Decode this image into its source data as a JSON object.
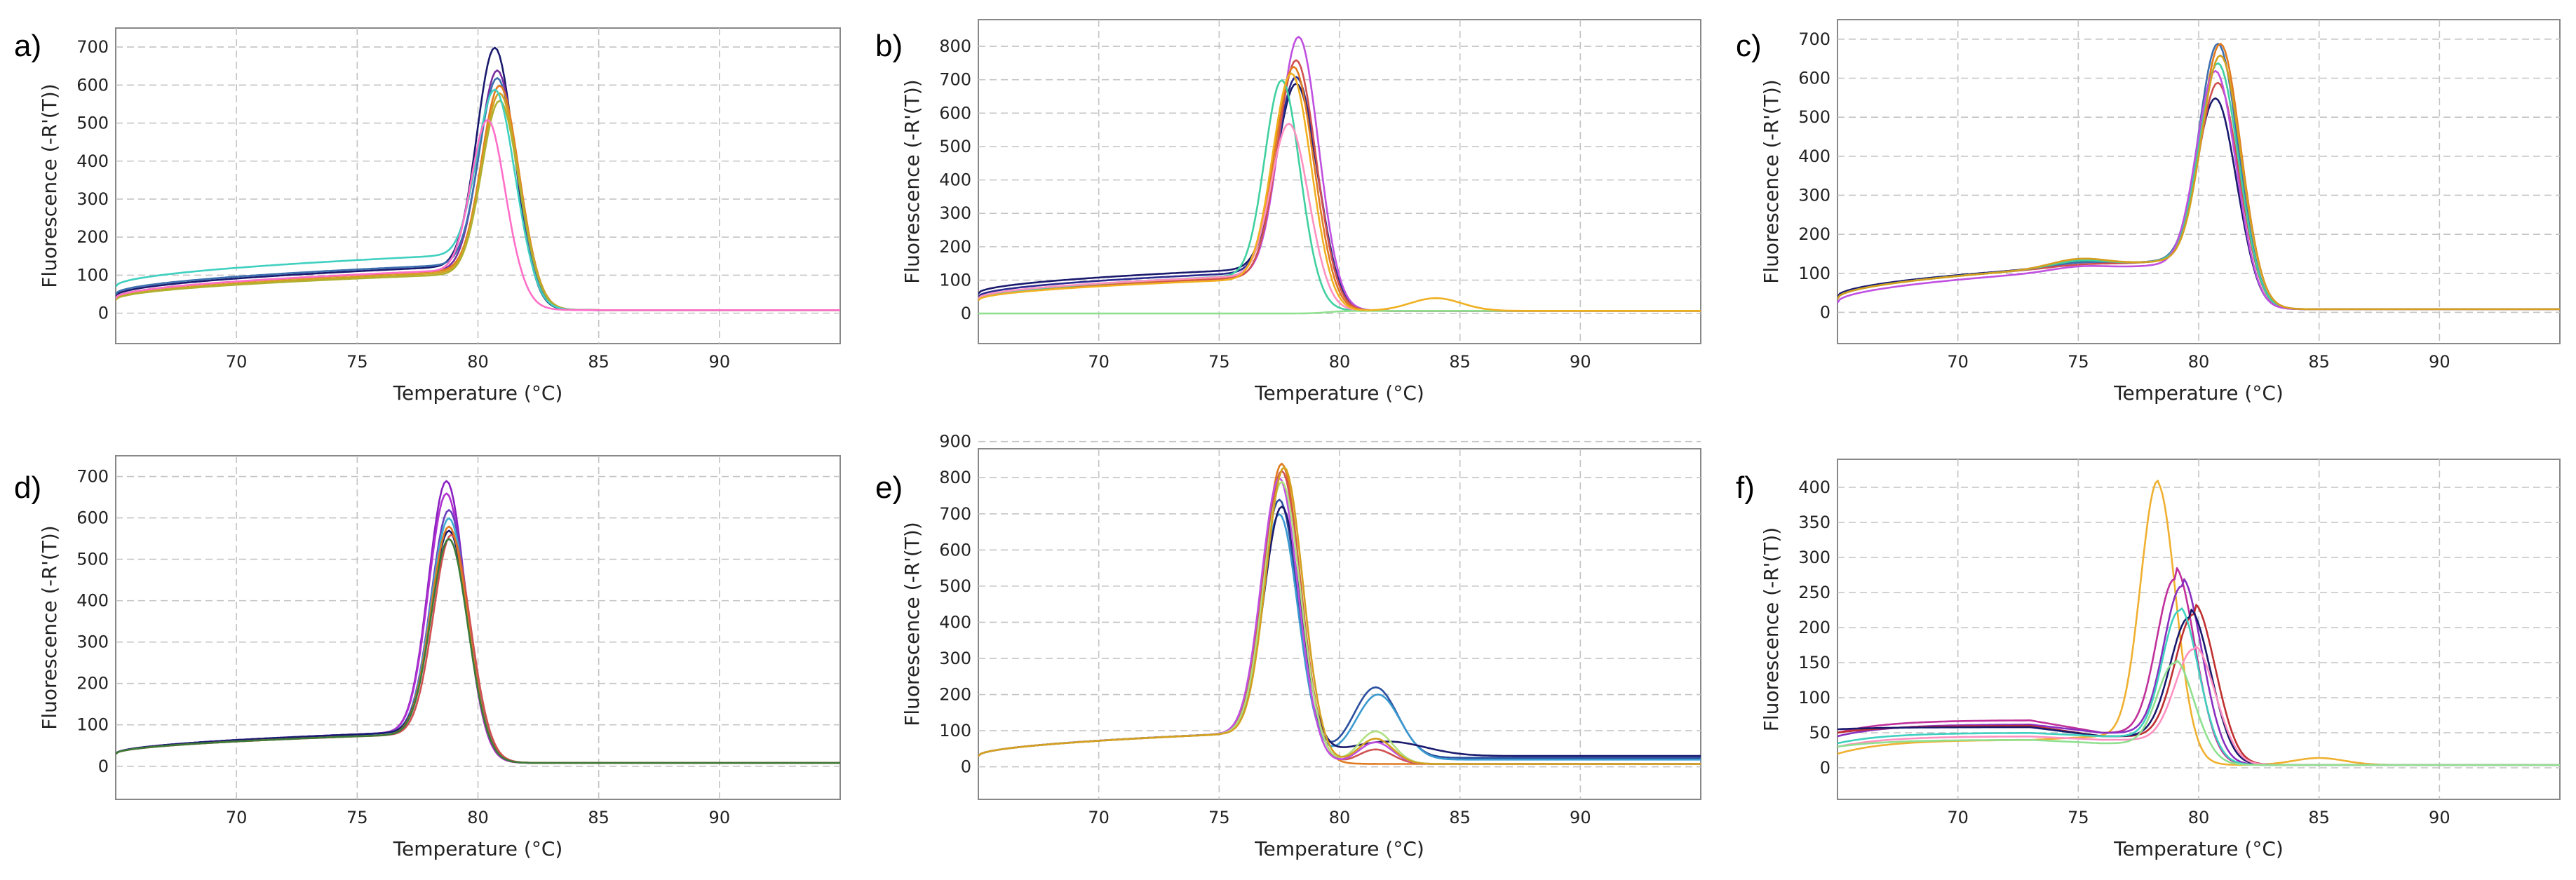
{
  "chart_data": [
    {
      "panel": "a)",
      "type": "line",
      "xlabel": "Temperature (°C)",
      "ylabel": "Fluorescence (-R'(T))",
      "xlim": [
        65,
        95
      ],
      "ylim": [
        -80,
        750
      ],
      "xticks": [
        70,
        75,
        80,
        85,
        90
      ],
      "yticks": [
        0,
        100,
        200,
        300,
        400,
        500,
        600,
        700
      ],
      "grid": true,
      "series": [
        {
          "color": "#1a1a6e",
          "peak_x": 80.7,
          "peak_y": 700,
          "width": 1.05,
          "base_left": 45,
          "plateau": 120
        },
        {
          "color": "#7a2fa0",
          "peak_x": 80.8,
          "peak_y": 640,
          "width": 1.05,
          "base_left": 40,
          "plateau": 110
        },
        {
          "color": "#3d6fb0",
          "peak_x": 80.8,
          "peak_y": 620,
          "width": 1.05,
          "base_left": 50,
          "plateau": 125
        },
        {
          "color": "#e07b20",
          "peak_x": 80.9,
          "peak_y": 600,
          "width": 1.05,
          "base_left": 40,
          "plateau": 110
        },
        {
          "color": "#d4a020",
          "peak_x": 80.9,
          "peak_y": 580,
          "width": 1.05,
          "base_left": 35,
          "plateau": 105
        },
        {
          "color": "#b0b030",
          "peak_x": 80.9,
          "peak_y": 560,
          "width": 1.05,
          "base_left": 35,
          "plateau": 100
        },
        {
          "color": "#3fd0c0",
          "peak_x": 80.7,
          "peak_y": 590,
          "width": 1.05,
          "base_left": 70,
          "plateau": 150
        },
        {
          "color": "#ff6fc8",
          "peak_x": 80.4,
          "peak_y": 510,
          "width": 0.95,
          "base_left": 40,
          "plateau": 110
        }
      ]
    },
    {
      "panel": "b)",
      "type": "line",
      "xlabel": "Temperature (°C)",
      "ylabel": "Fluorescence (-R'(T))",
      "xlim": [
        65,
        95
      ],
      "ylim": [
        -90,
        880
      ],
      "xticks": [
        70,
        75,
        80,
        85,
        90
      ],
      "yticks": [
        0,
        100,
        200,
        300,
        400,
        500,
        600,
        700,
        800
      ],
      "grid": true,
      "series": [
        {
          "color": "#1a1a6e",
          "peak_x": 78.2,
          "peak_y": 690,
          "width": 1.15,
          "base_left": 60,
          "plateau": 130
        },
        {
          "color": "#2b2b8f",
          "peak_x": 78.2,
          "peak_y": 710,
          "width": 1.15,
          "base_left": 50,
          "plateau": 120
        },
        {
          "color": "#c050e0",
          "peak_x": 78.3,
          "peak_y": 830,
          "width": 1.1,
          "base_left": 40,
          "plateau": 110
        },
        {
          "color": "#d05050",
          "peak_x": 78.2,
          "peak_y": 760,
          "width": 1.1,
          "base_left": 40,
          "plateau": 105
        },
        {
          "color": "#e07b20",
          "peak_x": 78.1,
          "peak_y": 740,
          "width": 1.1,
          "base_left": 40,
          "plateau": 110
        },
        {
          "color": "#40d0a0",
          "peak_x": 77.6,
          "peak_y": 700,
          "width": 1.0,
          "base_left": 40,
          "plateau": 110
        },
        {
          "color": "#ff90c0",
          "peak_x": 77.9,
          "peak_y": 570,
          "width": 1.05,
          "base_left": 45,
          "plateau": 110
        },
        {
          "color": "#90e090",
          "peak_x": 78.0,
          "peak_y": 0,
          "width": 1.0,
          "base_left": 0,
          "plateau": 0
        },
        {
          "color": "#f0b020",
          "peak_x": 78.0,
          "peak_y": 720,
          "width": 1.1,
          "base_left": 40,
          "plateau": 100,
          "bump_x": 84,
          "bump_y": 38,
          "bump_w": 1.5
        }
      ]
    },
    {
      "panel": "c)",
      "type": "line",
      "xlabel": "Temperature (°C)",
      "ylabel": "Fluorescence (-R'(T))",
      "xlim": [
        65,
        95
      ],
      "ylim": [
        -80,
        750
      ],
      "xticks": [
        70,
        75,
        80,
        85,
        90
      ],
      "yticks": [
        0,
        100,
        200,
        300,
        400,
        500,
        600,
        700
      ],
      "grid": true,
      "series": [
        {
          "color": "#1a1a6e",
          "peak_x": 80.7,
          "peak_y": 550,
          "width": 1.1,
          "base_left": 40,
          "plateau": 130,
          "shoulder": 140
        },
        {
          "color": "#3d6fb0",
          "peak_x": 80.8,
          "peak_y": 690,
          "width": 1.1,
          "base_left": 35,
          "plateau": 130,
          "shoulder": 140
        },
        {
          "color": "#e07b20",
          "peak_x": 80.9,
          "peak_y": 690,
          "width": 1.1,
          "base_left": 35,
          "plateau": 130,
          "shoulder": 150
        },
        {
          "color": "#d05050",
          "peak_x": 80.8,
          "peak_y": 590,
          "width": 1.1,
          "base_left": 35,
          "plateau": 130,
          "shoulder": 135
        },
        {
          "color": "#40d0a0",
          "peak_x": 80.8,
          "peak_y": 640,
          "width": 1.1,
          "base_left": 35,
          "plateau": 130,
          "shoulder": 145
        },
        {
          "color": "#c050e0",
          "peak_x": 80.7,
          "peak_y": 620,
          "width": 1.1,
          "base_left": 25,
          "plateau": 120,
          "shoulder": 130
        },
        {
          "color": "#d4a020",
          "peak_x": 80.9,
          "peak_y": 660,
          "width": 1.1,
          "base_left": 35,
          "plateau": 130,
          "shoulder": 150
        }
      ]
    },
    {
      "panel": "d)",
      "type": "line",
      "xlabel": "Temperature (°C)",
      "ylabel": "Fluorescence (-R'(T))",
      "xlim": [
        65,
        95
      ],
      "ylim": [
        -80,
        750
      ],
      "xticks": [
        70,
        75,
        80,
        85,
        90
      ],
      "yticks": [
        0,
        100,
        200,
        300,
        400,
        500,
        600,
        700
      ],
      "grid": true,
      "series": [
        {
          "color": "#8a20c0",
          "peak_x": 78.7,
          "peak_y": 690,
          "width": 1.05,
          "base_left": 30,
          "plateau": 80
        },
        {
          "color": "#b030d0",
          "peak_x": 78.7,
          "peak_y": 660,
          "width": 1.05,
          "base_left": 30,
          "plateau": 80
        },
        {
          "color": "#6a40c0",
          "peak_x": 78.8,
          "peak_y": 620,
          "width": 1.05,
          "base_left": 30,
          "plateau": 80
        },
        {
          "color": "#3fb0d0",
          "peak_x": 78.8,
          "peak_y": 600,
          "width": 1.05,
          "base_left": 30,
          "plateau": 80
        },
        {
          "color": "#1a1a6e",
          "peak_x": 78.8,
          "peak_y": 570,
          "width": 1.05,
          "base_left": 30,
          "plateau": 80
        },
        {
          "color": "#d05050",
          "peak_x": 78.9,
          "peak_y": 560,
          "width": 1.05,
          "base_left": 30,
          "plateau": 75
        },
        {
          "color": "#e07b20",
          "peak_x": 78.8,
          "peak_y": 580,
          "width": 1.05,
          "base_left": 30,
          "plateau": 75
        },
        {
          "color": "#3a7a3a",
          "peak_x": 78.8,
          "peak_y": 550,
          "width": 1.05,
          "base_left": 30,
          "plateau": 75
        }
      ]
    },
    {
      "panel": "e)",
      "type": "line",
      "xlabel": "Temperature (°C)",
      "ylabel": "Fluorescence (-R'(T))",
      "xlim": [
        65,
        95
      ],
      "ylim": [
        -90,
        880
      ],
      "xticks": [
        70,
        75,
        80,
        85,
        90
      ],
      "yticks": [
        0,
        100,
        200,
        300,
        400,
        500,
        600,
        700,
        800,
        900
      ],
      "grid": true,
      "series": [
        {
          "color": "#2b4f9f",
          "peak_x": 77.5,
          "peak_y": 740,
          "width": 1.05,
          "base_left": 30,
          "plateau": 90,
          "bump_x": 81.5,
          "bump_y": 195,
          "bump_w": 1.3,
          "tail": 25
        },
        {
          "color": "#3a9ad0",
          "peak_x": 77.5,
          "peak_y": 700,
          "width": 1.05,
          "base_left": 30,
          "plateau": 90,
          "bump_x": 81.6,
          "bump_y": 180,
          "bump_w": 1.3,
          "tail": 20
        },
        {
          "color": "#1a1a6e",
          "peak_x": 77.6,
          "peak_y": 720,
          "width": 1.05,
          "base_left": 30,
          "plateau": 90,
          "bump_x": 82.0,
          "bump_y": 40,
          "bump_w": 2.2,
          "tail": 30
        },
        {
          "color": "#e07b20",
          "peak_x": 77.6,
          "peak_y": 840,
          "width": 1.05,
          "base_left": 30,
          "plateau": 90
        },
        {
          "color": "#d05050",
          "peak_x": 77.6,
          "peak_y": 820,
          "width": 1.05,
          "base_left": 30,
          "plateau": 90,
          "bump_x": 81.5,
          "bump_y": 40,
          "bump_w": 1.0
        },
        {
          "color": "#c050e0",
          "peak_x": 77.5,
          "peak_y": 800,
          "width": 1.05,
          "base_left": 30,
          "plateau": 90,
          "bump_x": 81.5,
          "bump_y": 60,
          "bump_w": 1.0
        },
        {
          "color": "#b0e080",
          "peak_x": 77.6,
          "peak_y": 790,
          "width": 1.05,
          "base_left": 30,
          "plateau": 90,
          "bump_x": 81.5,
          "bump_y": 90,
          "bump_w": 1.0
        },
        {
          "color": "#d4a020",
          "peak_x": 77.7,
          "peak_y": 830,
          "width": 1.05,
          "base_left": 30,
          "plateau": 90,
          "bump_x": 81.5,
          "bump_y": 70,
          "bump_w": 1.0
        }
      ]
    },
    {
      "panel": "f)",
      "type": "line",
      "xlabel": "Temperature (°C)",
      "ylabel": "Fluorescence (-R'(T))",
      "xlim": [
        65,
        95
      ],
      "ylim": [
        -45,
        440
      ],
      "xticks": [
        70,
        75,
        80,
        85,
        90
      ],
      "yticks": [
        0,
        50,
        100,
        150,
        200,
        250,
        300,
        350,
        400
      ],
      "grid": true,
      "series": [
        {
          "color": "#f0b030",
          "peak_x": 78.3,
          "peak_y": 410,
          "width": 1.0,
          "base_left": 20,
          "plateau": 45,
          "hump": 40,
          "bump_x": 85,
          "bump_y": 10,
          "bump_w": 1.5
        },
        {
          "color": "#c0309a",
          "peak_x": 79.0,
          "peak_y": 270,
          "width": 1.05,
          "base_left": 50,
          "plateau": 50,
          "hump": 68
        },
        {
          "color": "#8a2fc0",
          "peak_x": 79.3,
          "peak_y": 260,
          "width": 1.05,
          "base_left": 45,
          "plateau": 50,
          "hump": 62
        },
        {
          "color": "#c03030",
          "peak_x": 79.8,
          "peak_y": 220,
          "width": 1.1,
          "base_left": 50,
          "plateau": 45,
          "hump": 60
        },
        {
          "color": "#1a1a6e",
          "peak_x": 79.6,
          "peak_y": 215,
          "width": 1.1,
          "base_left": 55,
          "plateau": 45,
          "hump": 58
        },
        {
          "color": "#3fd0c0",
          "peak_x": 79.2,
          "peak_y": 225,
          "width": 1.0,
          "base_left": 35,
          "plateau": 45,
          "hump": 50
        },
        {
          "color": "#ff90c0",
          "peak_x": 79.8,
          "peak_y": 170,
          "width": 1.1,
          "base_left": 30,
          "plateau": 40,
          "hump": 45
        },
        {
          "color": "#90e090",
          "peak_x": 79.0,
          "peak_y": 150,
          "width": 1.0,
          "base_left": 30,
          "plateau": 35,
          "hump": 40
        }
      ]
    }
  ]
}
